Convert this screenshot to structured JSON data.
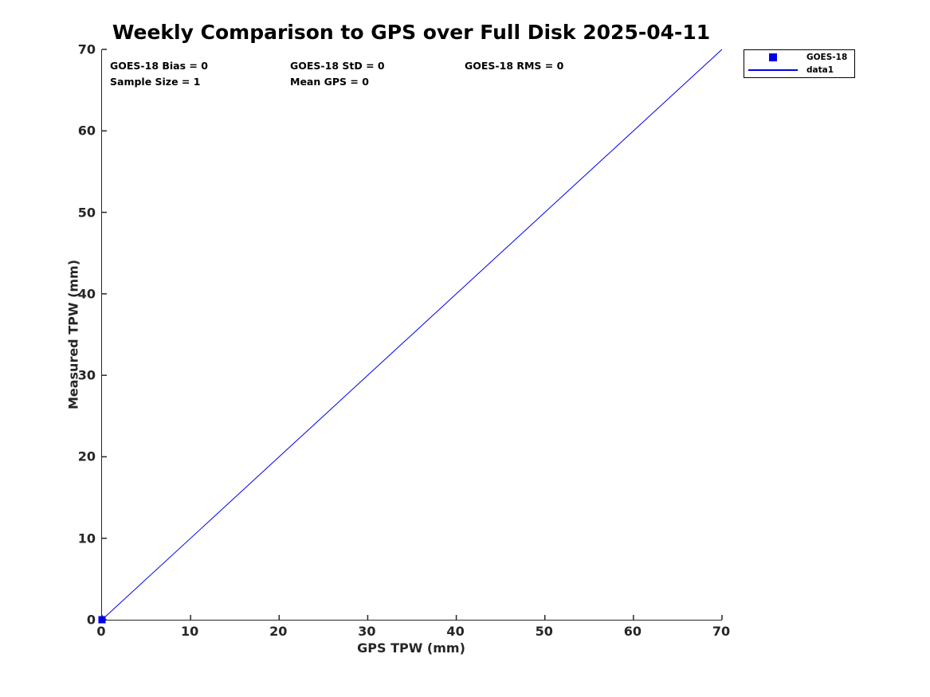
{
  "chart_data": {
    "type": "line",
    "title": "Weekly Comparison to GPS over Full Disk 2025-04-11",
    "xlabel": "GPS TPW (mm)",
    "ylabel": "Measured TPW (mm)",
    "xlim": [
      0,
      70
    ],
    "ylim": [
      0,
      70
    ],
    "x_ticks": [
      0,
      10,
      20,
      30,
      40,
      50,
      60,
      70
    ],
    "y_ticks": [
      0,
      10,
      20,
      30,
      40,
      50,
      60,
      70
    ],
    "grid": false,
    "legend_position": "top-right-outside",
    "series": [
      {
        "name": "GOES-18",
        "type": "scatter",
        "marker": "filled-square",
        "color": "#0000ee",
        "x": [
          0
        ],
        "y": [
          0
        ]
      },
      {
        "name": "data1",
        "type": "line",
        "color": "#0000ee",
        "line_width": 1,
        "x": [
          0,
          70
        ],
        "y": [
          0,
          70
        ]
      }
    ],
    "annotations": [
      {
        "text": "GOES-18 Bias = 0"
      },
      {
        "text": "GOES-18 StD = 0"
      },
      {
        "text": "GOES-18 RMS = 0"
      },
      {
        "text": "Sample Size = 1"
      },
      {
        "text": "Mean GPS = 0"
      }
    ],
    "stats": {
      "bias": 0,
      "std": 0,
      "rms": 0,
      "sample_size": 1,
      "mean_gps": 0
    },
    "colors": {
      "accent_blue": "#0000ee",
      "axis": "#262626",
      "text": "#000000",
      "background": "#ffffff"
    }
  }
}
